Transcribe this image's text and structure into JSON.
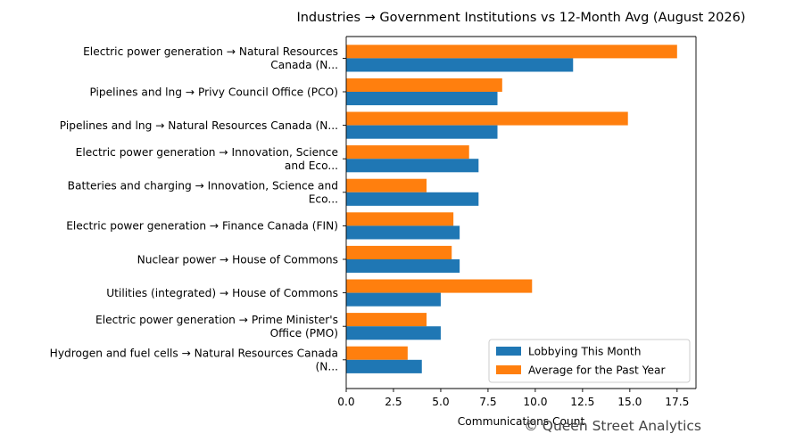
{
  "chart_data": {
    "type": "bar",
    "orientation": "horizontal",
    "title": "Industries → Government Institutions vs 12-Month Avg (August 2026)",
    "xlabel": "Communications Count",
    "ylabel": "",
    "xlim": [
      0,
      18.5
    ],
    "x_ticks": [
      "0.0",
      "2.5",
      "5.0",
      "7.5",
      "10.0",
      "12.5",
      "15.0",
      "17.5"
    ],
    "grid": false,
    "legend_position": "lower-right",
    "categories": [
      [
        "Electric power generation → Natural Resources",
        "Canada (N..."
      ],
      [
        "Pipelines and lng → Privy Council Office (PCO)"
      ],
      [
        "Pipelines and lng → Natural Resources Canada (N..."
      ],
      [
        "Electric power generation → Innovation, Science",
        "and Eco..."
      ],
      [
        "Batteries and charging → Innovation, Science and",
        "Eco..."
      ],
      [
        "Electric power generation → Finance Canada (FIN)"
      ],
      [
        "Nuclear power → House of Commons"
      ],
      [
        "Utilities (integrated) → House of Commons"
      ],
      [
        "Electric power generation → Prime Minister's",
        "Office (PMO)"
      ],
      [
        "Hydrogen and fuel cells → Natural Resources Canada",
        "(N..."
      ]
    ],
    "series": [
      {
        "name": "Lobbying This Month",
        "color": "#1f77b4",
        "values": [
          12,
          8,
          8,
          7,
          7,
          6,
          6,
          5,
          5,
          4
        ]
      },
      {
        "name": "Average for the Past Year",
        "color": "#ff7f0e",
        "values": [
          17.5,
          8.25,
          14.9,
          6.5,
          4.25,
          5.67,
          5.58,
          9.83,
          4.25,
          3.25
        ]
      }
    ]
  },
  "watermark": "© Queen Street Analytics"
}
